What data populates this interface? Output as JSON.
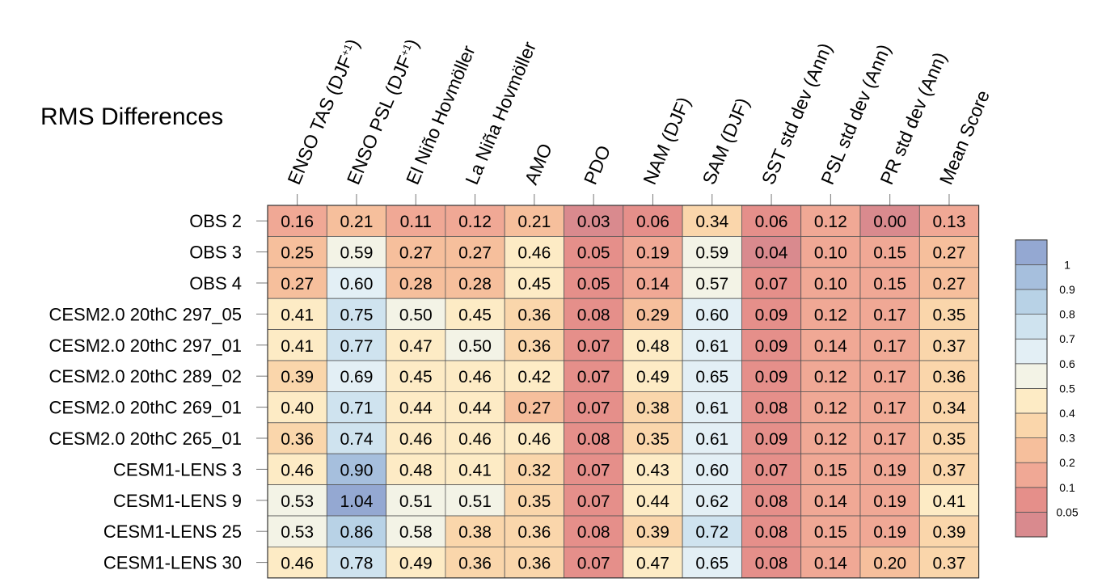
{
  "chart_data": {
    "type": "heatmap",
    "title": "RMS Differences",
    "columns": [
      "ENSO TAS (DJF+1)",
      "ENSO PSL (DJF+1)",
      "El Niño Hovmöller",
      "La Niña Hovmöller",
      "AMO",
      "PDO",
      "NAM (DJF)",
      "SAM (DJF)",
      "SST std dev (Ann)",
      "PSL std dev (Ann)",
      "PR std dev (Ann)",
      "Mean Score"
    ],
    "rows": [
      "OBS 2",
      "OBS 3",
      "OBS 4",
      "CESM2.0 20thC 297_05",
      "CESM2.0 20thC 297_01",
      "CESM2.0 20thC 289_02",
      "CESM2.0 20thC 269_01",
      "CESM2.0 20thC 265_01",
      "CESM1-LENS 3",
      "CESM1-LENS 9",
      "CESM1-LENS 25",
      "CESM1-LENS 30"
    ],
    "values": [
      [
        "0.16",
        "0.21",
        "0.11",
        "0.12",
        "0.21",
        "0.03",
        "0.06",
        "0.34",
        "0.06",
        "0.12",
        "0.00",
        "0.13"
      ],
      [
        "0.25",
        "0.59",
        "0.27",
        "0.27",
        "0.46",
        "0.05",
        "0.19",
        "0.59",
        "0.04",
        "0.10",
        "0.15",
        "0.27"
      ],
      [
        "0.27",
        "0.60",
        "0.28",
        "0.28",
        "0.45",
        "0.05",
        "0.14",
        "0.57",
        "0.07",
        "0.10",
        "0.15",
        "0.27"
      ],
      [
        "0.41",
        "0.75",
        "0.50",
        "0.45",
        "0.36",
        "0.08",
        "0.29",
        "0.60",
        "0.09",
        "0.12",
        "0.17",
        "0.35"
      ],
      [
        "0.41",
        "0.77",
        "0.47",
        "0.50",
        "0.36",
        "0.07",
        "0.48",
        "0.61",
        "0.09",
        "0.14",
        "0.17",
        "0.37"
      ],
      [
        "0.39",
        "0.69",
        "0.45",
        "0.46",
        "0.42",
        "0.07",
        "0.49",
        "0.65",
        "0.09",
        "0.12",
        "0.17",
        "0.36"
      ],
      [
        "0.40",
        "0.71",
        "0.44",
        "0.44",
        "0.27",
        "0.07",
        "0.38",
        "0.61",
        "0.08",
        "0.12",
        "0.17",
        "0.34"
      ],
      [
        "0.36",
        "0.74",
        "0.46",
        "0.46",
        "0.46",
        "0.08",
        "0.35",
        "0.61",
        "0.09",
        "0.12",
        "0.17",
        "0.35"
      ],
      [
        "0.46",
        "0.90",
        "0.48",
        "0.41",
        "0.32",
        "0.07",
        "0.43",
        "0.60",
        "0.07",
        "0.15",
        "0.19",
        "0.37"
      ],
      [
        "0.53",
        "1.04",
        "0.51",
        "0.51",
        "0.35",
        "0.07",
        "0.44",
        "0.62",
        "0.08",
        "0.14",
        "0.19",
        "0.41"
      ],
      [
        "0.53",
        "0.86",
        "0.58",
        "0.38",
        "0.36",
        "0.08",
        "0.39",
        "0.72",
        "0.08",
        "0.15",
        "0.19",
        "0.39"
      ],
      [
        "0.46",
        "0.78",
        "0.49",
        "0.36",
        "0.36",
        "0.07",
        "0.47",
        "0.65",
        "0.08",
        "0.14",
        "0.20",
        "0.37"
      ]
    ],
    "colorbar": {
      "levels": [
        "0.05",
        "0.1",
        "0.2",
        "0.3",
        "0.4",
        "0.5",
        "0.6",
        "0.7",
        "0.8",
        "0.9",
        "1"
      ],
      "thresholds": [
        0.05,
        0.1,
        0.2,
        0.3,
        0.4,
        0.5,
        0.6,
        0.7,
        0.8,
        0.9,
        1.0
      ],
      "colors": [
        "#d98a8e",
        "#e58f8a",
        "#f0a895",
        "#f6bf9c",
        "#fad6ab",
        "#fdebc5",
        "#f3f3e6",
        "#e3eff5",
        "#cfe3ef",
        "#b8d2e6",
        "#a6bfdd",
        "#94a8d2"
      ]
    }
  }
}
